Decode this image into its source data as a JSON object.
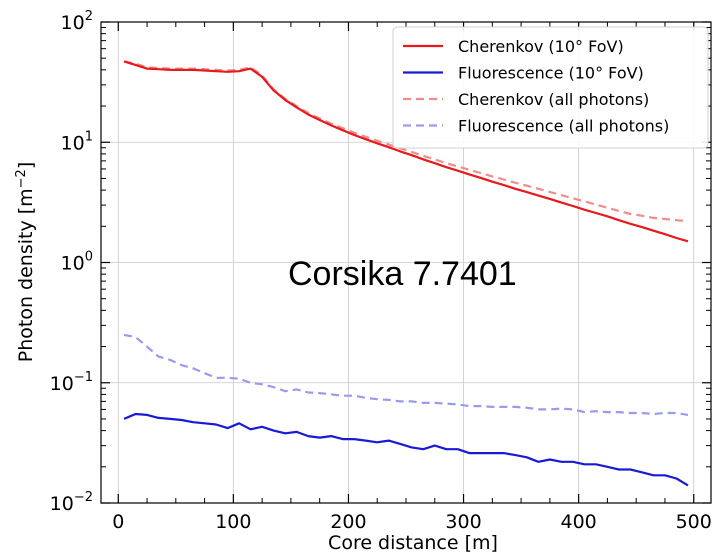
{
  "chart_data": {
    "type": "line",
    "title": "",
    "xlabel": "Core distance [m]",
    "ylabel": "Photon density [m",
    "ylabel_sup": "−2",
    "ylabel_close": "]",
    "xlim": [
      -15,
      515
    ],
    "ylim": [
      0.01,
      100
    ],
    "yscale": "log",
    "grid": true,
    "legend_position": "top-right",
    "annotation": "Corsika 7.7401",
    "x_ticks": [
      {
        "value": 0,
        "label": "0"
      },
      {
        "value": 100,
        "label": "100"
      },
      {
        "value": 200,
        "label": "200"
      },
      {
        "value": 300,
        "label": "300"
      },
      {
        "value": 400,
        "label": "400"
      },
      {
        "value": 500,
        "label": "500"
      }
    ],
    "y_ticks": [
      {
        "value": 0.01,
        "base": "10",
        "exp": "−2"
      },
      {
        "value": 0.1,
        "base": "10",
        "exp": "−1"
      },
      {
        "value": 1,
        "base": "10",
        "exp": "0"
      },
      {
        "value": 10,
        "base": "10",
        "exp": "1"
      },
      {
        "value": 100,
        "base": "10",
        "exp": "2"
      }
    ],
    "series": [
      {
        "name": "Cherenkov (10° FoV)",
        "color": "#e8191c",
        "style": "solid",
        "x": [
          5,
          15,
          25,
          35,
          45,
          55,
          65,
          75,
          85,
          95,
          105,
          115,
          125,
          135,
          145,
          155,
          165,
          175,
          185,
          195,
          205,
          215,
          225,
          235,
          245,
          255,
          265,
          275,
          285,
          295,
          305,
          315,
          325,
          335,
          345,
          355,
          365,
          375,
          385,
          395,
          405,
          415,
          425,
          435,
          445,
          455,
          465,
          475,
          485,
          495
        ],
        "y": [
          47,
          44,
          41,
          40.5,
          40,
          40,
          40,
          39.5,
          39,
          38.5,
          39,
          41,
          35,
          27,
          22.5,
          19.5,
          17,
          15.3,
          13.8,
          12.6,
          11.5,
          10.6,
          9.8,
          9.1,
          8.4,
          7.8,
          7.2,
          6.7,
          6.2,
          5.8,
          5.4,
          5.05,
          4.7,
          4.4,
          4.1,
          3.85,
          3.6,
          3.38,
          3.15,
          2.95,
          2.75,
          2.58,
          2.42,
          2.25,
          2.1,
          1.97,
          1.84,
          1.72,
          1.6,
          1.5
        ]
      },
      {
        "name": "Fluorescence (10° FoV)",
        "color": "#1a1ad6",
        "style": "solid",
        "x": [
          5,
          15,
          25,
          35,
          45,
          55,
          65,
          75,
          85,
          95,
          105,
          115,
          125,
          135,
          145,
          155,
          165,
          175,
          185,
          195,
          205,
          215,
          225,
          235,
          245,
          255,
          265,
          275,
          285,
          295,
          305,
          315,
          325,
          335,
          345,
          355,
          365,
          375,
          385,
          395,
          405,
          415,
          425,
          435,
          445,
          455,
          465,
          475,
          485,
          495
        ],
        "y": [
          0.05,
          0.055,
          0.054,
          0.051,
          0.05,
          0.049,
          0.047,
          0.046,
          0.045,
          0.042,
          0.046,
          0.041,
          0.043,
          0.04,
          0.038,
          0.039,
          0.036,
          0.035,
          0.036,
          0.034,
          0.034,
          0.033,
          0.032,
          0.033,
          0.031,
          0.029,
          0.028,
          0.03,
          0.028,
          0.028,
          0.026,
          0.026,
          0.026,
          0.026,
          0.025,
          0.024,
          0.022,
          0.023,
          0.022,
          0.022,
          0.021,
          0.021,
          0.02,
          0.019,
          0.019,
          0.018,
          0.017,
          0.017,
          0.016,
          0.014
        ]
      },
      {
        "name": "Cherenkov (all photons)",
        "color": "#f08c8c",
        "style": "dashed",
        "x": [
          5,
          15,
          25,
          35,
          45,
          55,
          65,
          75,
          85,
          95,
          105,
          115,
          125,
          135,
          145,
          155,
          165,
          175,
          185,
          195,
          205,
          215,
          225,
          235,
          245,
          255,
          265,
          275,
          285,
          295,
          305,
          315,
          325,
          335,
          345,
          355,
          365,
          375,
          385,
          395,
          405,
          415,
          425,
          435,
          445,
          455,
          465,
          475,
          485,
          495
        ],
        "y": [
          47,
          45,
          42,
          41.5,
          41,
          41,
          41,
          40.5,
          40,
          39.5,
          40,
          42,
          36,
          27.5,
          23,
          20,
          17.5,
          15.8,
          14.3,
          13.1,
          12,
          11.1,
          10.3,
          9.6,
          8.9,
          8.3,
          7.7,
          7.2,
          6.7,
          6.3,
          5.9,
          5.55,
          5.2,
          4.9,
          4.6,
          4.35,
          4.1,
          3.86,
          3.63,
          3.42,
          3.22,
          3.03,
          2.85,
          2.68,
          2.53,
          2.45,
          2.35,
          2.3,
          2.25,
          2.2
        ]
      },
      {
        "name": "Fluorescence (all photons)",
        "color": "#9a9aee",
        "style": "dashed",
        "x": [
          5,
          15,
          25,
          35,
          45,
          55,
          65,
          75,
          85,
          95,
          105,
          115,
          125,
          135,
          145,
          155,
          165,
          175,
          185,
          195,
          205,
          215,
          225,
          235,
          245,
          255,
          265,
          275,
          285,
          295,
          305,
          315,
          325,
          335,
          345,
          355,
          365,
          375,
          385,
          395,
          405,
          415,
          425,
          435,
          445,
          455,
          465,
          475,
          485,
          495
        ],
        "y": [
          0.25,
          0.24,
          0.2,
          0.165,
          0.155,
          0.14,
          0.132,
          0.12,
          0.11,
          0.11,
          0.108,
          0.1,
          0.097,
          0.092,
          0.085,
          0.088,
          0.083,
          0.082,
          0.08,
          0.078,
          0.078,
          0.075,
          0.073,
          0.072,
          0.07,
          0.07,
          0.068,
          0.068,
          0.067,
          0.066,
          0.064,
          0.064,
          0.063,
          0.063,
          0.063,
          0.062,
          0.06,
          0.06,
          0.061,
          0.06,
          0.057,
          0.058,
          0.057,
          0.057,
          0.056,
          0.056,
          0.055,
          0.056,
          0.056,
          0.054
        ]
      }
    ]
  }
}
